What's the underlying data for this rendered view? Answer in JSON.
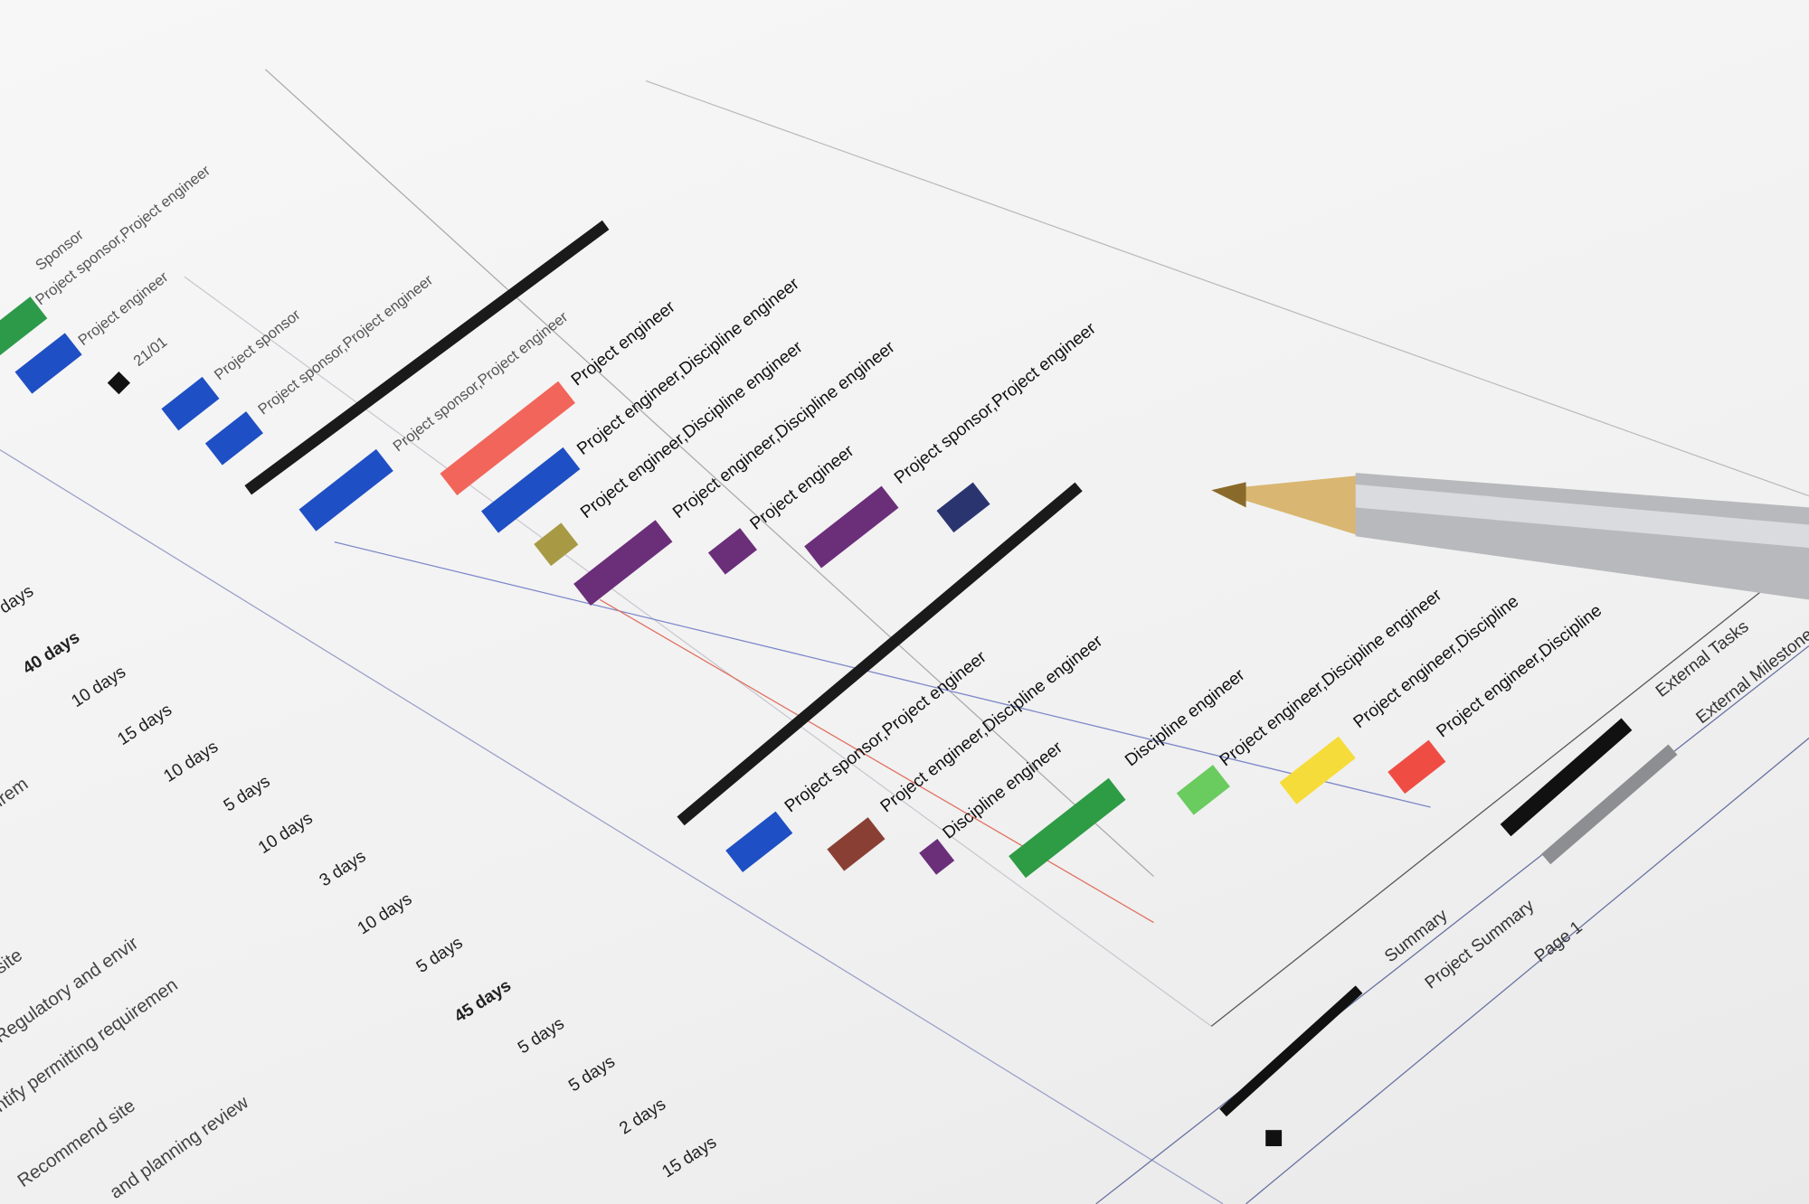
{
  "gantt": {
    "resource_labels": [
      "Sponsor",
      "Project sponsor,Project engineer",
      "Project engineer",
      "21/01",
      "Project sponsor",
      "Project sponsor,Project engineer",
      "Project sponsor,Project engineer",
      "Project engineer",
      "Project engineer,Discipline engineer",
      "Project engineer,Discipline engineer",
      "Project engineer,Discipline engineer",
      "Project engineer",
      "Project sponsor,Project engineer",
      "Project sponsor,Project engineer",
      "Project engineer,Discipline engineer",
      "Discipline engineer",
      "Discipline engineer",
      "Project engineer,Discipline engineer",
      "Project engineer,Discipline",
      "Project engineer,Discipline"
    ],
    "durations": [
      "days",
      "40 days",
      "10 days",
      "15 days",
      "10 days",
      "5 days",
      "10 days",
      "3 days",
      "10 days",
      "5 days",
      "45 days",
      "5 days",
      "5 days",
      "2 days",
      "15 days"
    ],
    "task_names": [
      "irem",
      "site",
      "Regulatory and envir",
      "ntify permitting requiremen",
      "Recommend site",
      "and planning review"
    ],
    "bar_colors": [
      "#2d9a4a",
      "#1f4fc4",
      "#1f4fc4",
      "#1f4fc4",
      "#1f4fc4",
      "#f2655a",
      "#1f4fc4",
      "#a89a45",
      "#6b2f7a",
      "#6b2f7a",
      "#6b2f7a",
      "#2a3570",
      "#1f4fc4",
      "#8a3f35",
      "#6b2f7a",
      "#2e9b45",
      "#6acb5e",
      "#f6dc3a",
      "#ef4d44"
    ]
  },
  "legend": {
    "items": [
      "Summary",
      "Project Summary",
      "Page 1",
      "External Tasks",
      "External Milestone"
    ]
  }
}
